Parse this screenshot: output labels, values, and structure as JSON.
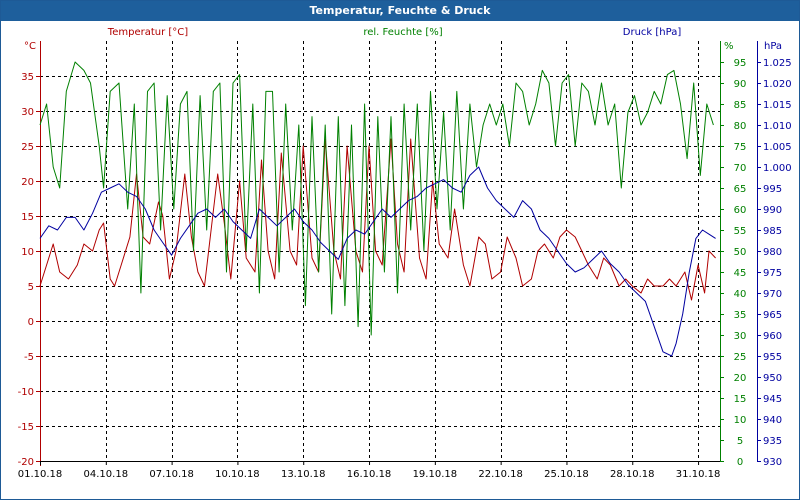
{
  "title": "Temperatur, Feuchte & Druck",
  "chart_data": {
    "type": "line",
    "title": "Temperatur, Feuchte & Druck",
    "grid": true,
    "x_ticks": [
      "01.10.18",
      "04.10.18",
      "07.10.18",
      "10.10.18",
      "13.10.18",
      "16.10.18",
      "19.10.18",
      "22.10.18",
      "25.10.18",
      "28.10.18",
      "31.10.18"
    ],
    "xlim": [
      1,
      32
    ],
    "axes": {
      "temperature": {
        "label": "Temperatur [°C]",
        "unit": "°C",
        "ylim": [
          -20,
          40
        ],
        "ticks": [
          -20,
          -15,
          -10,
          -5,
          0,
          5,
          10,
          15,
          20,
          25,
          30,
          35
        ],
        "color": "#b00000"
      },
      "humidity": {
        "label": "rel. Feuchte [%]",
        "unit": "%",
        "ylim": [
          0,
          100
        ],
        "ticks": [
          0,
          5,
          10,
          15,
          20,
          25,
          30,
          35,
          40,
          45,
          50,
          55,
          60,
          65,
          70,
          75,
          80,
          85,
          90,
          95
        ],
        "color": "#008000"
      },
      "pressure": {
        "label": "Druck [hPa]",
        "unit": "hPa",
        "ylim": [
          930,
          1030
        ],
        "ticks": [
          "930",
          "935",
          "940",
          "945",
          "950",
          "955",
          "960",
          "965",
          "970",
          "975",
          "980",
          "985",
          "990",
          "995",
          "1.000",
          "1.005",
          "1.010",
          "1.015",
          "1.020",
          "1.025"
        ],
        "color": "#0000a0"
      }
    },
    "series": [
      {
        "name": "Temperatur [°C]",
        "axis": "temperature",
        "color": "#b00000",
        "x": [
          1,
          1.3,
          1.6,
          1.9,
          2.3,
          2.7,
          3.0,
          3.4,
          3.7,
          3.9,
          4.2,
          4.4,
          4.7,
          5.1,
          5.4,
          5.7,
          6.0,
          6.4,
          6.6,
          6.9,
          7.2,
          7.6,
          7.9,
          8.2,
          8.5,
          8.8,
          9.1,
          9.4,
          9.7,
          10.1,
          10.4,
          10.8,
          11.1,
          11.4,
          11.7,
          12.0,
          12.4,
          12.7,
          13.0,
          13.4,
          13.7,
          14.0,
          14.4,
          14.7,
          15.0,
          15.4,
          15.7,
          16.0,
          16.3,
          16.6,
          17.0,
          17.3,
          17.6,
          17.9,
          18.3,
          18.6,
          18.9,
          19.2,
          19.6,
          19.9,
          20.3,
          20.6,
          21.0,
          21.3,
          21.6,
          22.0,
          22.3,
          22.7,
          23.0,
          23.4,
          23.7,
          24.0,
          24.4,
          24.7,
          25.0,
          25.4,
          25.7,
          26.0,
          26.4,
          26.7,
          27.0,
          27.4,
          27.7,
          28.0,
          28.4,
          28.7,
          29.0,
          29.4,
          29.7,
          30.0,
          30.4,
          30.7,
          31.0,
          31.3,
          31.5,
          31.8
        ],
        "values": [
          5,
          8,
          11,
          7,
          6,
          8,
          11,
          10,
          13,
          14,
          6,
          5,
          8,
          12,
          21,
          12,
          11,
          17,
          15,
          6,
          10,
          21,
          12,
          7,
          5,
          13,
          21,
          14,
          6,
          20,
          9,
          7,
          23,
          10,
          6,
          24,
          10,
          8,
          25,
          9,
          7,
          26,
          10,
          6,
          25,
          10,
          7,
          25,
          10,
          8,
          26,
          11,
          7,
          26,
          9,
          6,
          20,
          11,
          9,
          16,
          8,
          5,
          12,
          11,
          6,
          7,
          12,
          9,
          5,
          6,
          10,
          11,
          9,
          12,
          13,
          12,
          10,
          8,
          6,
          9,
          8,
          5,
          6,
          5,
          4,
          6,
          5,
          5,
          6,
          5,
          7,
          3,
          8,
          4,
          10,
          9
        ]
      },
      {
        "name": "rel. Feuchte [%]",
        "axis": "humidity",
        "color": "#008000",
        "x": [
          1,
          1.3,
          1.6,
          1.9,
          2.2,
          2.6,
          3.0,
          3.3,
          3.7,
          3.9,
          4.2,
          4.6,
          5.0,
          5.3,
          5.6,
          5.9,
          6.2,
          6.5,
          6.8,
          7.1,
          7.4,
          7.7,
          8.0,
          8.3,
          8.6,
          8.9,
          9.2,
          9.5,
          9.8,
          10.1,
          10.4,
          10.7,
          11.0,
          11.3,
          11.6,
          11.9,
          12.2,
          12.5,
          12.8,
          13.1,
          13.4,
          13.7,
          14.0,
          14.3,
          14.6,
          14.9,
          15.2,
          15.5,
          15.8,
          16.1,
          16.4,
          16.7,
          17.0,
          17.3,
          17.6,
          17.9,
          18.2,
          18.5,
          18.8,
          19.1,
          19.4,
          19.7,
          20.0,
          20.3,
          20.6,
          20.9,
          21.2,
          21.5,
          21.8,
          22.1,
          22.4,
          22.7,
          23.0,
          23.3,
          23.6,
          23.9,
          24.2,
          24.5,
          24.8,
          25.1,
          25.4,
          25.7,
          26.0,
          26.3,
          26.6,
          26.9,
          27.2,
          27.5,
          27.8,
          28.1,
          28.4,
          28.7,
          29.0,
          29.3,
          29.6,
          29.9,
          30.2,
          30.5,
          30.8,
          31.1,
          31.4,
          31.7
        ],
        "values": [
          80,
          85,
          70,
          65,
          88,
          95,
          93,
          90,
          75,
          65,
          88,
          90,
          60,
          85,
          40,
          88,
          90,
          55,
          87,
          60,
          85,
          88,
          50,
          87,
          55,
          88,
          90,
          45,
          90,
          92,
          50,
          85,
          40,
          88,
          88,
          45,
          85,
          55,
          80,
          37,
          82,
          45,
          80,
          35,
          82,
          37,
          80,
          32,
          85,
          30,
          82,
          45,
          82,
          40,
          85,
          55,
          85,
          50,
          88,
          60,
          83,
          55,
          88,
          60,
          85,
          70,
          80,
          85,
          80,
          85,
          75,
          90,
          88,
          80,
          85,
          93,
          90,
          75,
          90,
          92,
          75,
          90,
          88,
          80,
          90,
          80,
          85,
          65,
          83,
          87,
          80,
          83,
          88,
          85,
          92,
          93,
          85,
          72,
          90,
          68,
          85,
          80
        ]
      },
      {
        "name": "Druck [hPa]",
        "axis": "pressure",
        "color": "#0000a0",
        "x": [
          1,
          1.4,
          1.8,
          2.2,
          2.6,
          3.0,
          3.4,
          3.8,
          4.2,
          4.6,
          5.0,
          5.4,
          5.8,
          6.2,
          6.6,
          7.0,
          7.4,
          7.8,
          8.2,
          8.6,
          9.0,
          9.4,
          9.8,
          10.2,
          10.6,
          11.0,
          11.4,
          11.8,
          12.2,
          12.6,
          13.0,
          13.4,
          13.8,
          14.2,
          14.6,
          15.0,
          15.4,
          15.8,
          16.2,
          16.6,
          17.0,
          17.4,
          17.8,
          18.2,
          18.6,
          19.0,
          19.4,
          19.8,
          20.2,
          20.6,
          21.0,
          21.4,
          21.8,
          22.2,
          22.6,
          23.0,
          23.4,
          23.8,
          24.2,
          24.6,
          25.0,
          25.4,
          25.8,
          26.2,
          26.6,
          27.0,
          27.4,
          27.8,
          28.2,
          28.6,
          29.0,
          29.4,
          29.8,
          30.0,
          30.3,
          30.6,
          30.9,
          31.2,
          31.5,
          31.8
        ],
        "values": [
          983,
          986,
          985,
          988,
          988,
          985,
          989,
          994,
          995,
          996,
          994,
          993,
          990,
          985,
          982,
          979,
          983,
          986,
          989,
          990,
          988,
          990,
          987,
          985,
          983,
          990,
          988,
          986,
          988,
          990,
          987,
          985,
          982,
          980,
          978,
          983,
          985,
          984,
          987,
          990,
          988,
          990,
          992,
          993,
          995,
          996,
          997,
          995,
          994,
          998,
          1000,
          995,
          992,
          990,
          988,
          992,
          990,
          985,
          983,
          980,
          977,
          975,
          976,
          978,
          980,
          977,
          975,
          972,
          970,
          968,
          962,
          956,
          955,
          958,
          965,
          975,
          983,
          985,
          984,
          983
        ]
      }
    ]
  }
}
